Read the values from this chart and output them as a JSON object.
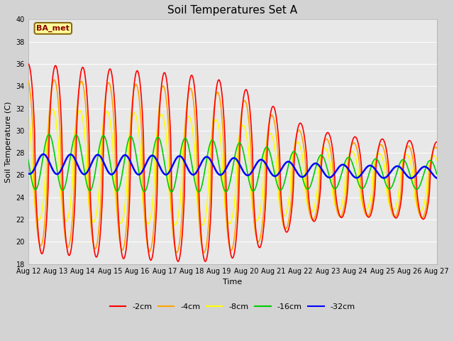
{
  "title": "Soil Temperatures Set A",
  "xlabel": "Time",
  "ylabel": "Soil Temperature (C)",
  "ylim": [
    18,
    40
  ],
  "annotation_text": "BA_met",
  "annotation_color": "#8B0000",
  "annotation_bg": "#FFFF99",
  "colors": {
    "-2cm": "#FF0000",
    "-4cm": "#FFA500",
    "-8cm": "#FFFF00",
    "-16cm": "#00CC00",
    "-32cm": "#0000FF"
  },
  "linewidths": {
    "-2cm": 1.2,
    "-4cm": 1.2,
    "-8cm": 1.2,
    "-16cm": 1.2,
    "-32cm": 1.8
  },
  "x_ticks": [
    "Aug 12",
    "Aug 13",
    "Aug 14",
    "Aug 15",
    "Aug 16",
    "Aug 17",
    "Aug 18",
    "Aug 19",
    "Aug 20",
    "Aug 21",
    "Aug 22",
    "Aug 23",
    "Aug 24",
    "Aug 25",
    "Aug 26",
    "Aug 27"
  ],
  "plot_bg": "#E8E8E8",
  "fig_bg": "#D3D3D3",
  "title_fontsize": 11,
  "tick_fontsize": 7,
  "label_fontsize": 8
}
